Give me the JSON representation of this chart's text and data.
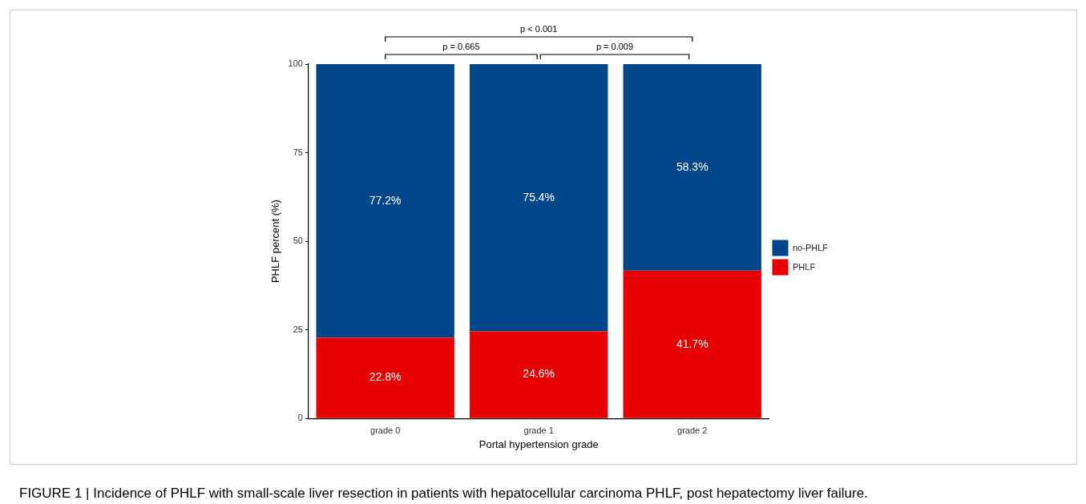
{
  "chart_data": {
    "type": "bar",
    "stacked": true,
    "xlabel": "Portal hypertension grade",
    "ylabel": "PHLF percent (%)",
    "categories": [
      "grade 0",
      "grade 1",
      "grade 2"
    ],
    "series": [
      {
        "name": "PHLF",
        "color": "#e60000",
        "values": [
          22.8,
          24.6,
          41.7
        ],
        "value_labels": [
          "22.8%",
          "24.6%",
          "41.7%"
        ]
      },
      {
        "name": "no-PHLF",
        "color": "#00468b",
        "values": [
          77.2,
          75.4,
          58.3
        ],
        "value_labels": [
          "77.2%",
          "75.4%",
          "58.3%"
        ]
      }
    ],
    "ylim": [
      0,
      100
    ],
    "yticks": [
      0,
      25,
      50,
      75,
      100
    ],
    "grid": false,
    "legend": "right",
    "annotations": [
      "p < 0.001",
      "p = 0.665",
      "p = 0.009",
      "FIGURE 1 | Incidence of PHLF with small-scale liver resection in patients with hepatocellular carcinoma PHLF, post hepatectomy liver failure."
    ]
  }
}
